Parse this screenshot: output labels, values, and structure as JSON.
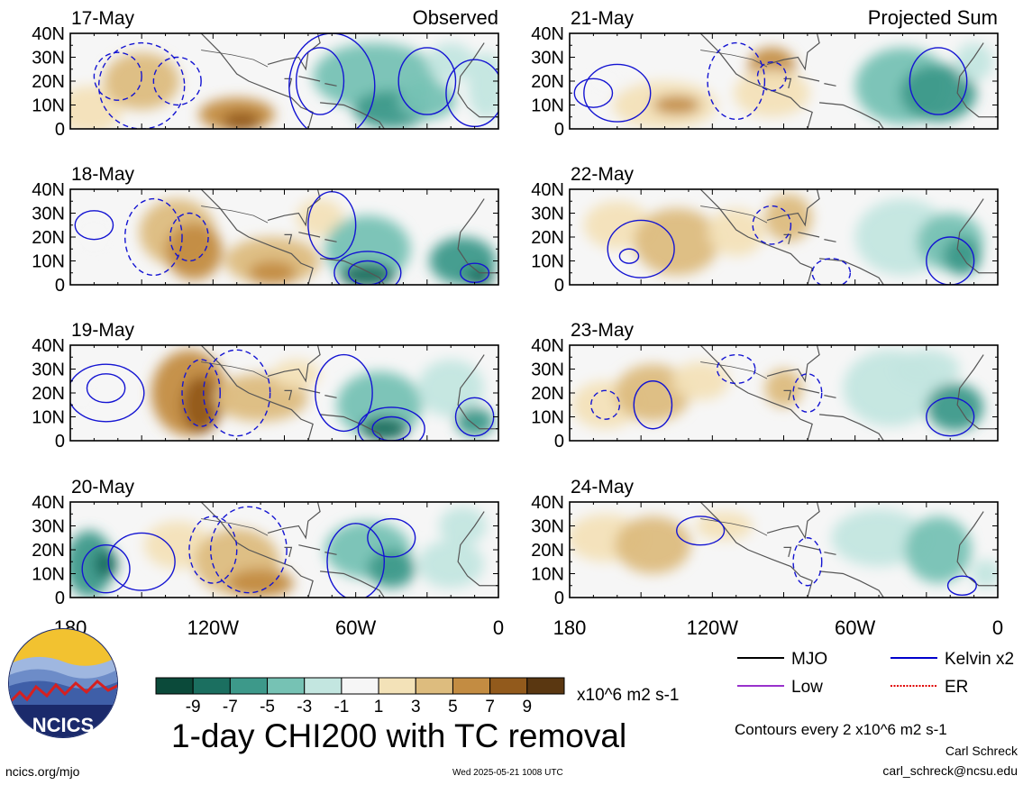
{
  "chart_data": {
    "type": "heatmap",
    "title": "1-day CHI200 with TC removal",
    "contour_note": "Contours every 2 x10^6 m2 s-1",
    "units": "x10^6 m2 s-1",
    "x_axis": {
      "ticks": [
        "180",
        "120W",
        "60W",
        "0"
      ],
      "lon_range": [
        -180,
        0
      ]
    },
    "y_axis": {
      "ticks": [
        "40N",
        "30N",
        "20N",
        "10N",
        "0"
      ],
      "lat_range": [
        0,
        40
      ]
    },
    "column_titles": {
      "left": "Observed",
      "right": "Projected Sum"
    },
    "panels": [
      {
        "date": "17-May",
        "column": "left"
      },
      {
        "date": "18-May",
        "column": "left"
      },
      {
        "date": "19-May",
        "column": "left"
      },
      {
        "date": "20-May",
        "column": "left"
      },
      {
        "date": "21-May",
        "column": "right"
      },
      {
        "date": "22-May",
        "column": "right"
      },
      {
        "date": "23-May",
        "column": "right"
      },
      {
        "date": "24-May",
        "column": "right"
      }
    ],
    "colorbar": {
      "labels": [
        "-9",
        "-7",
        "-5",
        "-3",
        "-1",
        "1",
        "3",
        "5",
        "7",
        "9"
      ],
      "colors": [
        "#0b4a3a",
        "#1b6f60",
        "#3d998a",
        "#76c2b4",
        "#c3e6e0",
        "#f6f6f6",
        "#f3e2b8",
        "#ddbc7e",
        "#c38c42",
        "#925a1c",
        "#5a3711"
      ]
    },
    "legend": [
      {
        "label": "MJO",
        "color": "#000000",
        "style": "solid"
      },
      {
        "label": "Kelvin x2",
        "color": "#0000cc",
        "style": "solid"
      },
      {
        "label": "Low",
        "color": "#9932cc",
        "style": "solid"
      },
      {
        "label": "ER",
        "color": "#e00000",
        "style": "dotted"
      }
    ]
  },
  "footer": {
    "author": "Carl Schreck",
    "email": "carl_schreck@ncsu.edu",
    "url": "ncics.org/mjo",
    "timestamp": "Wed 2025-05-21 1008 UTC",
    "logo_text": "NCICS"
  }
}
